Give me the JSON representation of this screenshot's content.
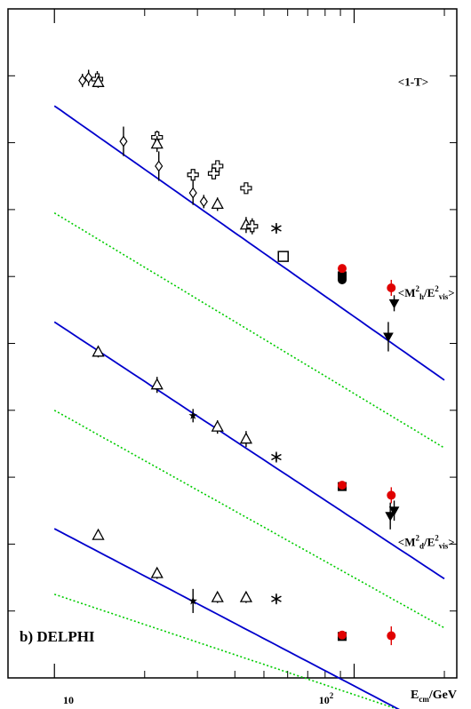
{
  "chart_data": {
    "type": "scatter",
    "x_scale": "log",
    "xlim": [
      7,
      220
    ],
    "xlabel_main": "E",
    "xlabel_sub": "cm",
    "xlabel_unit": "/GeV",
    "x_ticks": [
      {
        "value": 10,
        "label": "10"
      },
      {
        "value": 100,
        "label_base": "10",
        "label_exp": "2"
      }
    ],
    "x_minor_ticks": [
      20,
      30,
      40,
      50,
      60,
      70,
      80,
      90,
      200
    ],
    "experiment_label": "b)  DELPHI",
    "colors": {
      "axis": "#000000",
      "fit": "#0000cc",
      "dotted": "#00cc00",
      "delphi": "#e00000",
      "markers": "#000000"
    },
    "panels": [
      {
        "label_parts": {
          "pre": "<1-T>"
        },
        "label_x": 140,
        "label_y": 0.885,
        "fit": {
          "a": 0.855,
          "b": -0.315
        },
        "lo": {
          "a": 0.695,
          "b": -0.27
        },
        "points": [
          {
            "x": 12.4,
            "y": 0.893,
            "m": "diamond",
            "e": 0.01
          },
          {
            "x": 13.0,
            "y": 0.897,
            "m": "diamond",
            "e": 0.012
          },
          {
            "x": 13.9,
            "y": 0.895,
            "m": "cross",
            "e": 0.012
          },
          {
            "x": 14.0,
            "y": 0.89,
            "m": "triangle",
            "e": 0.008
          },
          {
            "x": 17.0,
            "y": 0.802,
            "m": "diamond",
            "e": 0.022
          },
          {
            "x": 22.0,
            "y": 0.808,
            "m": "cross",
            "e": 0.01
          },
          {
            "x": 22.0,
            "y": 0.798,
            "m": "triangle",
            "e": 0.012
          },
          {
            "x": 22.3,
            "y": 0.765,
            "m": "diamond",
            "e": 0.022
          },
          {
            "x": 29.0,
            "y": 0.725,
            "m": "diamond",
            "e": 0.018
          },
          {
            "x": 29.0,
            "y": 0.752,
            "m": "cross",
            "e": 0.008
          },
          {
            "x": 31.5,
            "y": 0.712,
            "m": "diamond",
            "e": 0.01
          },
          {
            "x": 34.0,
            "y": 0.754,
            "m": "cross",
            "e": 0.008
          },
          {
            "x": 35.0,
            "y": 0.765,
            "m": "cross",
            "e": 0.008
          },
          {
            "x": 35.0,
            "y": 0.708,
            "m": "triangle",
            "e": 0.01
          },
          {
            "x": 43.6,
            "y": 0.732,
            "m": "cross",
            "e": 0.008
          },
          {
            "x": 43.6,
            "y": 0.677,
            "m": "triangle",
            "e": 0.012
          },
          {
            "x": 45.7,
            "y": 0.675,
            "m": "cross",
            "e": 0.012
          },
          {
            "x": 55.0,
            "y": 0.672,
            "m": "asterisk",
            "e": 0.006
          },
          {
            "x": 58.0,
            "y": 0.63,
            "m": "square",
            "e": 0.006
          },
          {
            "x": 91.2,
            "y": 0.601,
            "m": "square_filled",
            "e": 0.004
          },
          {
            "x": 91.2,
            "y": 0.612,
            "m": "circle_red",
            "e": 0.004
          },
          {
            "x": 91.2,
            "y": 0.595,
            "m": "circle_black",
            "e": 0.004
          },
          {
            "x": 133.0,
            "y": 0.583,
            "m": "circle_red",
            "e": 0.012
          },
          {
            "x": 136.0,
            "y": 0.56,
            "m": "tri_down",
            "e": 0.012
          },
          {
            "x": 130.0,
            "y": 0.51,
            "m": "tri_down",
            "e": 0.022
          }
        ]
      },
      {
        "label_parts": {
          "pre": "<M",
          "sub": "h",
          "sup": "2",
          "mid": "/E",
          "sub2": "vis",
          "sup2": "2",
          "post": ">"
        },
        "label_x": 140,
        "label_y": 0.57,
        "fit": {
          "a": 0.532,
          "b": -0.295
        },
        "lo": {
          "a": 0.4,
          "b": -0.25
        },
        "points": [
          {
            "x": 14.0,
            "y": 0.487,
            "m": "triangle",
            "e": 0.008
          },
          {
            "x": 22.0,
            "y": 0.438,
            "m": "triangle",
            "e": 0.012
          },
          {
            "x": 29.0,
            "y": 0.392,
            "m": "star",
            "e": 0.01
          },
          {
            "x": 35.0,
            "y": 0.375,
            "m": "triangle",
            "e": 0.01
          },
          {
            "x": 43.6,
            "y": 0.357,
            "m": "triangle",
            "e": 0.012
          },
          {
            "x": 55.0,
            "y": 0.33,
            "m": "asterisk",
            "e": 0.006
          },
          {
            "x": 91.2,
            "y": 0.286,
            "m": "square_filled",
            "e": 0.004
          },
          {
            "x": 91.2,
            "y": 0.288,
            "m": "circle_red",
            "e": 0.004
          },
          {
            "x": 133.0,
            "y": 0.273,
            "m": "circle_red",
            "e": 0.012
          },
          {
            "x": 136.0,
            "y": 0.25,
            "m": "tri_down",
            "e": 0.015
          },
          {
            "x": 132.0,
            "y": 0.242,
            "m": "tri_down",
            "e": 0.02
          }
        ]
      },
      {
        "label_parts": {
          "pre": "<M",
          "sub": "d",
          "sup": "2",
          "mid": "/E",
          "sub2": "vis",
          "sup2": "2",
          "post": ">"
        },
        "label_x": 140,
        "label_y": 0.197,
        "fit": {
          "a": 0.223,
          "b": -0.235
        },
        "lo": {
          "a": 0.125,
          "b": -0.15
        },
        "points": [
          {
            "x": 14.0,
            "y": 0.213,
            "m": "triangle",
            "e": 0.006
          },
          {
            "x": 22.0,
            "y": 0.156,
            "m": "triangle",
            "e": 0.008
          },
          {
            "x": 29.0,
            "y": 0.115,
            "m": "star",
            "e": 0.018
          },
          {
            "x": 35.0,
            "y": 0.12,
            "m": "triangle",
            "e": 0.008
          },
          {
            "x": 43.6,
            "y": 0.12,
            "m": "triangle",
            "e": 0.008
          },
          {
            "x": 55.0,
            "y": 0.118,
            "m": "asterisk",
            "e": 0.006
          },
          {
            "x": 91.2,
            "y": 0.062,
            "m": "square_filled",
            "e": 0.004
          },
          {
            "x": 91.2,
            "y": 0.064,
            "m": "circle_red",
            "e": 0.004
          },
          {
            "x": 133.0,
            "y": 0.063,
            "m": "circle_red",
            "e": 0.014
          }
        ]
      }
    ]
  }
}
